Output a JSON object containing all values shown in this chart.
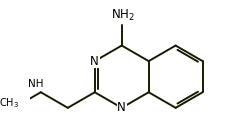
{
  "bg_color": "#ffffff",
  "bond_color": "#1a1a00",
  "text_color": "#000000",
  "bond_lw": 1.4,
  "font_size": 8.5,
  "fig_w": 2.49,
  "fig_h": 1.36,
  "dpi": 100,
  "xlim": [
    -3.8,
    3.2
  ],
  "ylim": [
    -1.6,
    2.0
  ]
}
